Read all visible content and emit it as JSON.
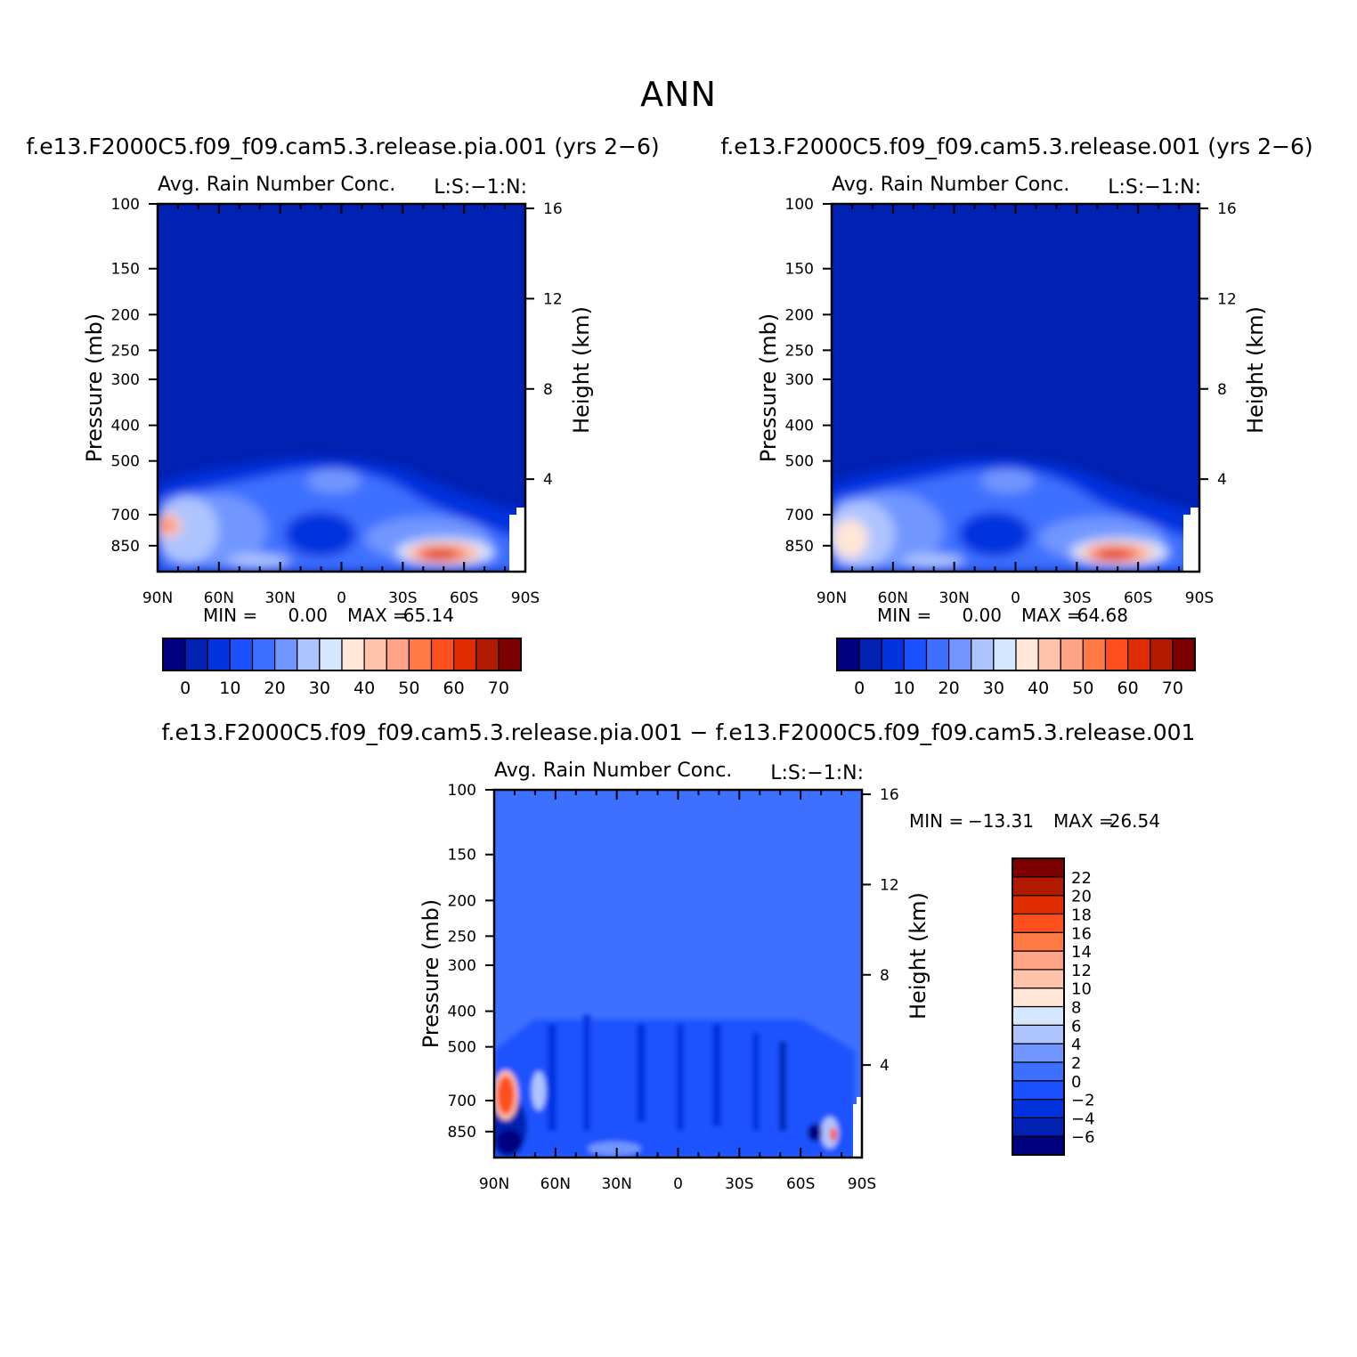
{
  "page": {
    "title": "ANN"
  },
  "colors": {
    "abs_scale": [
      "#000080",
      "#0021b2",
      "#0033de",
      "#1b52ff",
      "#3e70ff",
      "#7196ff",
      "#aec4ff",
      "#d5e6ff",
      "#ffe6d6",
      "#ffc3ab",
      "#ffa285",
      "#ff7a45",
      "#ff4f1f",
      "#e02d00",
      "#b21a00",
      "#7c0000"
    ],
    "diff_scale": [
      "#000080",
      "#0021b2",
      "#0033de",
      "#1b52ff",
      "#3e70ff",
      "#7196ff",
      "#aec4ff",
      "#d5e6ff",
      "#ffe6d6",
      "#ffc3ab",
      "#ffa285",
      "#ff7a45",
      "#ff4f1f",
      "#e02d00",
      "#b21a00",
      "#7c0000"
    ]
  },
  "chart_data": [
    {
      "id": "panel1",
      "type": "heatmap",
      "case_title": "f.e13.F2000C5.f09_f09.cam5.3.release.pia.001 (yrs 2−6)",
      "title": "Avg. Rain Number Conc.",
      "title_right": "L:S:−1:N:",
      "ylabel": "Pressure (mb)",
      "ylabel_right": "Height (km)",
      "x_ticklabels": [
        "90N",
        "60N",
        "30N",
        "0",
        "30S",
        "60S",
        "90S"
      ],
      "y_ticklabels": [
        "100",
        "150",
        "200",
        "250",
        "300",
        "400",
        "500",
        "700",
        "850"
      ],
      "y_ticks": [
        100,
        150,
        200,
        250,
        300,
        400,
        500,
        700,
        850
      ],
      "yr_ticklabels": [
        "16",
        "12",
        "8",
        "4"
      ],
      "yr_ticks": [
        16,
        12,
        8,
        4
      ],
      "ylim": [
        100,
        1000
      ],
      "y_scale": "log",
      "xlim": [
        90,
        -90
      ],
      "min_label": "MIN =",
      "min_value": "0.00",
      "max_label": "MAX =",
      "max_value": "65.14",
      "min": 0.0,
      "max": 65.14,
      "colorbar_labels": [
        "0",
        "10",
        "20",
        "30",
        "40",
        "50",
        "60",
        "70"
      ],
      "colorbar_levels": [
        -5,
        0,
        5,
        10,
        15,
        20,
        25,
        30,
        35,
        40,
        45,
        50,
        55,
        60,
        65,
        70
      ]
    },
    {
      "id": "panel2",
      "type": "heatmap",
      "case_title": "f.e13.F2000C5.f09_f09.cam5.3.release.001 (yrs 2−6)",
      "title": "Avg. Rain Number Conc.",
      "title_right": "L:S:−1:N:",
      "ylabel": "Pressure (mb)",
      "ylabel_right": "Height (km)",
      "x_ticklabels": [
        "90N",
        "60N",
        "30N",
        "0",
        "30S",
        "60S",
        "90S"
      ],
      "y_ticklabels": [
        "100",
        "150",
        "200",
        "250",
        "300",
        "400",
        "500",
        "700",
        "850"
      ],
      "y_ticks": [
        100,
        150,
        200,
        250,
        300,
        400,
        500,
        700,
        850
      ],
      "yr_ticklabels": [
        "16",
        "12",
        "8",
        "4"
      ],
      "yr_ticks": [
        16,
        12,
        8,
        4
      ],
      "ylim": [
        100,
        1000
      ],
      "y_scale": "log",
      "xlim": [
        90,
        -90
      ],
      "min_label": "MIN =",
      "min_value": "0.00",
      "max_label": "MAX =",
      "max_value": "64.68",
      "min": 0.0,
      "max": 64.68,
      "colorbar_labels": [
        "0",
        "10",
        "20",
        "30",
        "40",
        "50",
        "60",
        "70"
      ],
      "colorbar_levels": [
        -5,
        0,
        5,
        10,
        15,
        20,
        25,
        30,
        35,
        40,
        45,
        50,
        55,
        60,
        65,
        70
      ]
    },
    {
      "id": "panel3",
      "type": "heatmap",
      "case_title": "f.e13.F2000C5.f09_f09.cam5.3.release.pia.001 − f.e13.F2000C5.f09_f09.cam5.3.release.001",
      "title": "Avg. Rain Number Conc.",
      "title_right": "L:S:−1:N:",
      "ylabel": "Pressure (mb)",
      "ylabel_right": "Height (km)",
      "x_ticklabels": [
        "90N",
        "60N",
        "30N",
        "0",
        "30S",
        "60S",
        "90S"
      ],
      "y_ticklabels": [
        "100",
        "150",
        "200",
        "250",
        "300",
        "400",
        "500",
        "700",
        "850"
      ],
      "y_ticks": [
        100,
        150,
        200,
        250,
        300,
        400,
        500,
        700,
        850
      ],
      "yr_ticklabels": [
        "16",
        "12",
        "8",
        "4"
      ],
      "yr_ticks": [
        16,
        12,
        8,
        4
      ],
      "ylim": [
        100,
        1000
      ],
      "y_scale": "log",
      "xlim": [
        90,
        -90
      ],
      "min_label": "MIN =",
      "min_value": "−13.31",
      "max_label": "MAX =",
      "max_value": "26.54",
      "min": -13.31,
      "max": 26.54,
      "colorbar_labels": [
        "22",
        "20",
        "18",
        "16",
        "14",
        "12",
        "10",
        "8",
        "6",
        "4",
        "2",
        "0",
        "−2",
        "−4",
        "−6"
      ],
      "colorbar_levels": [
        -7,
        -6,
        -4,
        -2,
        0,
        2,
        4,
        6,
        8,
        10,
        12,
        14,
        16,
        18,
        20,
        22
      ]
    }
  ]
}
